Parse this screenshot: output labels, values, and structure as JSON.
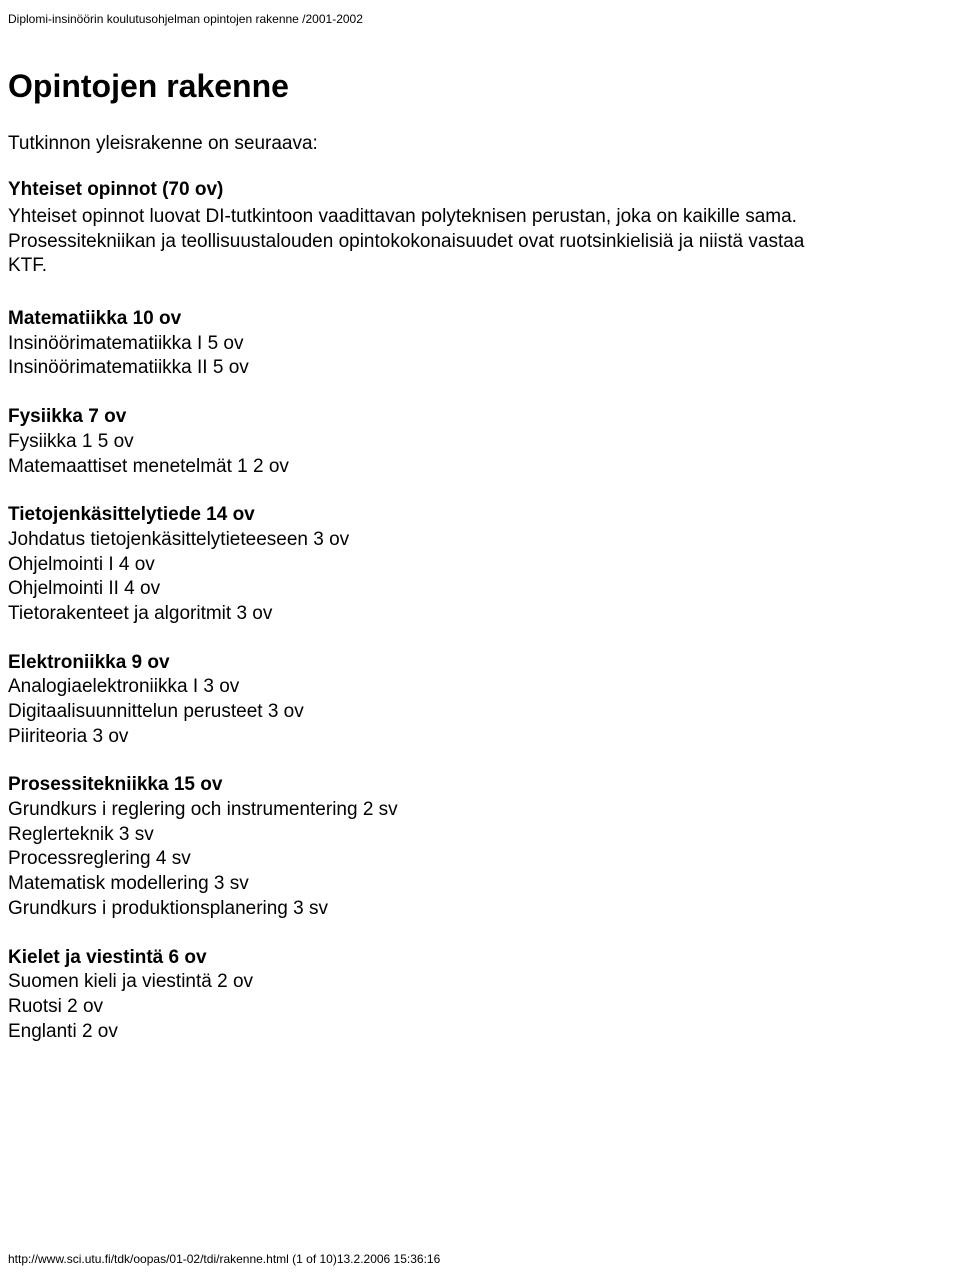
{
  "header": "Diplomi-insinöörin koulutusohjelman opintojen rakenne /2001-2002",
  "title": "Opintojen rakenne",
  "subtitle": "Tutkinnon yleisrakenne on seuraava:",
  "sectionHead": "Yhteiset opinnot (70 ov)",
  "introLine1": "Yhteiset opinnot luovat DI-tutkintoon vaadittavan polyteknisen perustan, joka on kaikille sama.",
  "introLine2": "Prosessitekniikan ja teollisuustalouden opintokokonaisuudet ovat ruotsinkielisiä ja niistä vastaa",
  "introLine3": "KTF.",
  "blocks": [
    {
      "title": "Matematiikka 10 ov",
      "items": [
        "Insinöörimatematiikka I 5 ov",
        "Insinöörimatematiikka II 5 ov"
      ]
    },
    {
      "title": "Fysiikka 7 ov",
      "items": [
        "Fysiikka 1 5 ov",
        "Matemaattiset menetelmät 1 2 ov"
      ]
    },
    {
      "title": "Tietojenkäsittelytiede 14 ov",
      "items": [
        "Johdatus tietojenkäsittelytieteeseen 3 ov",
        "Ohjelmointi I 4 ov",
        "Ohjelmointi II 4 ov",
        "Tietorakenteet ja algoritmit 3 ov"
      ]
    },
    {
      "title": "Elektroniikka 9 ov",
      "items": [
        "Analogiaelektroniikka I 3 ov",
        "Digitaalisuunnittelun perusteet 3 ov",
        "Piiriteoria 3 ov"
      ]
    },
    {
      "title": "Prosessitekniikka 15 ov",
      "items": [
        "Grundkurs i reglering och instrumentering 2 sv",
        "Reglerteknik 3 sv",
        "Processreglering 4 sv",
        "Matematisk modellering 3 sv",
        "Grundkurs i produktionsplanering 3 sv"
      ]
    },
    {
      "title": "Kielet ja viestintä 6 ov",
      "items": [
        "Suomen kieli ja viestintä 2 ov",
        "Ruotsi 2 ov",
        "Englanti 2 ov"
      ]
    }
  ],
  "footer": "http://www.sci.utu.fi/tdk/oopas/01-02/tdi/rakenne.html (1 of 10)13.2.2006 15:36:16"
}
